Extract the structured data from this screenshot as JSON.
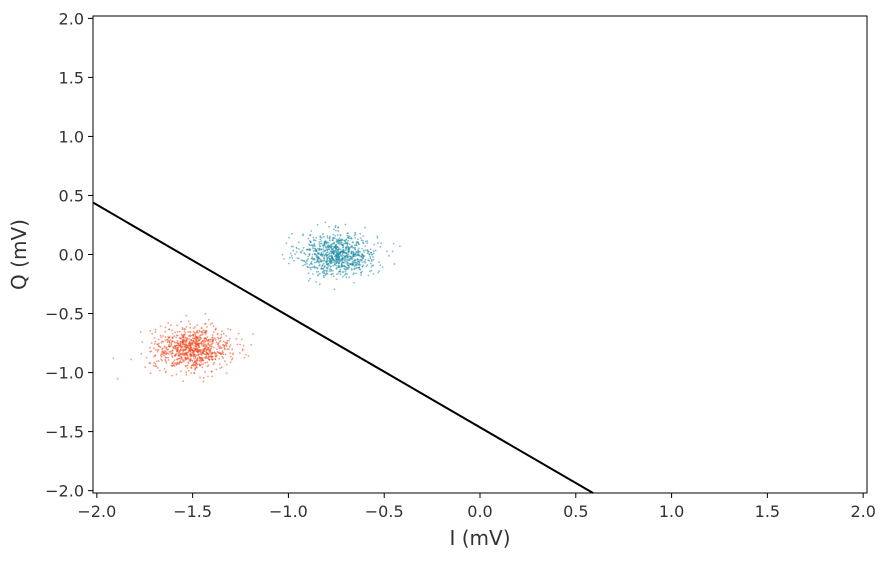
{
  "chart_data": {
    "type": "scatter",
    "title": "",
    "xlabel": "I (mV)",
    "ylabel": "Q (mV)",
    "xlim": [
      -2.02,
      2.02
    ],
    "ylim": [
      -2.02,
      2.02
    ],
    "xticks": [
      -2.0,
      -1.5,
      -1.0,
      -0.5,
      0.0,
      0.5,
      1.0,
      1.5,
      2.0
    ],
    "yticks": [
      -2.0,
      -1.5,
      -1.0,
      -0.5,
      0.0,
      0.5,
      1.0,
      1.5,
      2.0
    ],
    "xtick_labels": [
      "−2.0",
      "−1.5",
      "−1.0",
      "−0.5",
      "0.0",
      "0.5",
      "1.0",
      "1.5",
      "2.0"
    ],
    "ytick_labels": [
      "−2.0",
      "−1.5",
      "−1.0",
      "−0.5",
      "0.0",
      "0.5",
      "1.0",
      "1.5",
      "2.0"
    ],
    "grid": false,
    "series": [
      {
        "color": "#1a8aa4",
        "center": [
          -0.74,
          0.0
        ],
        "spread": [
          0.1,
          0.09
        ],
        "count": 900
      },
      {
        "color": "#f2471e",
        "center": [
          -1.5,
          -0.8
        ],
        "spread": [
          0.1,
          0.09
        ],
        "count": 900
      }
    ],
    "lines": [
      {
        "color": "#000000",
        "x": [
          -2.02,
          0.59
        ],
        "y": [
          0.44,
          -2.02
        ]
      }
    ]
  }
}
